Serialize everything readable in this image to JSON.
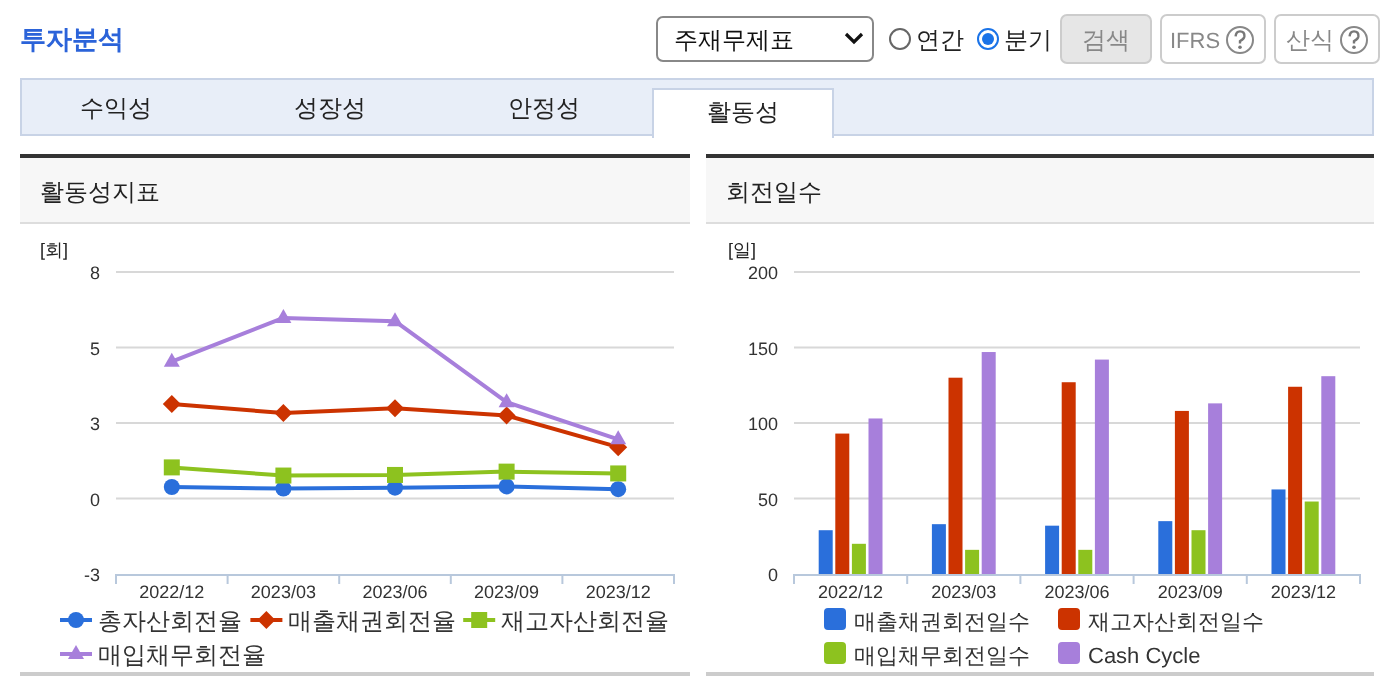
{
  "chart_data": [
    {
      "type": "other",
      "title": "투자분석",
      "annotations": [
        "주재무제표",
        "연간",
        "분기",
        "검색",
        "IFRS",
        "산식",
        "수익성",
        "성장성",
        "안정성",
        "활동성"
      ]
    },
    {
      "type": "line",
      "title": "활동성지표",
      "ylabel": "[회]",
      "categories": [
        "2022/12",
        "2023/03",
        "2023/06",
        "2023/09",
        "2023/12"
      ],
      "ylim": [
        -2.5,
        7.5
      ],
      "yticks": [
        {
          "value": -2.5,
          "label": "-3"
        },
        0,
        {
          "value": 2.5,
          "label": "3"
        },
        5,
        {
          "value": 7.5,
          "label": "8"
        }
      ],
      "grid": "y",
      "legend": "bottom",
      "series": [
        {
          "name": "총자산회전율",
          "color": "#2a6fdb",
          "marker": "circle",
          "values": [
            0.38,
            0.33,
            0.36,
            0.4,
            0.31
          ]
        },
        {
          "name": "매출채권회전율",
          "color": "#cc3300",
          "marker": "diamond",
          "values": [
            3.13,
            2.83,
            2.99,
            2.75,
            1.7
          ]
        },
        {
          "name": "재고자산회전율",
          "color": "#8dc21f",
          "marker": "square",
          "values": [
            1.03,
            0.76,
            0.78,
            0.89,
            0.83
          ]
        },
        {
          "name": "매입채무회전율",
          "color": "#a77fdb",
          "marker": "triangle",
          "values": [
            4.53,
            5.98,
            5.87,
            3.19,
            1.96
          ]
        }
      ]
    },
    {
      "type": "bar",
      "title": "회전일수",
      "ylabel": "[일]",
      "categories": [
        "2022/12",
        "2023/03",
        "2023/06",
        "2023/09",
        "2023/12"
      ],
      "ylim": [
        0,
        200
      ],
      "yticks": [
        0,
        50,
        100,
        150,
        200
      ],
      "grid": "y",
      "legend": "bottom",
      "series": [
        {
          "name": "매출채권회전일수",
          "color": "#2a6fdb",
          "values": [
            29,
            33,
            32,
            35,
            56
          ]
        },
        {
          "name": "재고자산회전일수",
          "color": "#cc3300",
          "values": [
            93,
            130,
            127,
            108,
            124
          ]
        },
        {
          "name": "매입채무회전일수",
          "color": "#8dc21f",
          "values": [
            20,
            16,
            16,
            29,
            48
          ]
        },
        {
          "name": "Cash Cycle",
          "color": "#a77fdb",
          "values": [
            103,
            147,
            142,
            113,
            131
          ]
        }
      ]
    }
  ]
}
